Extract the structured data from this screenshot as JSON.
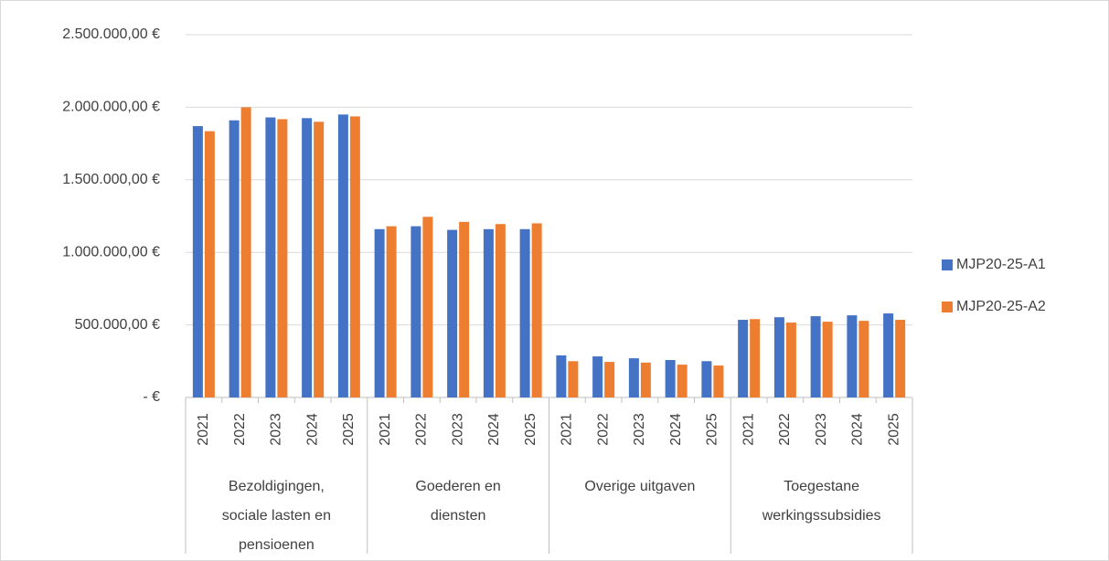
{
  "chart_data": {
    "type": "bar",
    "groups": [
      "Bezoldigingen, sociale lasten en pensioenen",
      "Goederen en diensten",
      "Overige uitgaven",
      "Toegestane werkingssubsidies"
    ],
    "categories": [
      "2021",
      "2022",
      "2023",
      "2024",
      "2025",
      "2021",
      "2022",
      "2023",
      "2024",
      "2025",
      "2021",
      "2022",
      "2023",
      "2024",
      "2025",
      "2021",
      "2022",
      "2023",
      "2024",
      "2025"
    ],
    "series": [
      {
        "name": "MJP20-25-A1",
        "color": "#4472c4",
        "values": [
          1870000,
          1910000,
          1930000,
          1925000,
          1950000,
          1160000,
          1180000,
          1155000,
          1160000,
          1160000,
          290000,
          283000,
          270000,
          258000,
          250000,
          535000,
          553000,
          560000,
          566000,
          579000
        ]
      },
      {
        "name": "MJP20-25-A2",
        "color": "#ed7d31",
        "values": [
          1835000,
          2000000,
          1918000,
          1900000,
          1937000,
          1180000,
          1245000,
          1210000,
          1195000,
          1200000,
          250000,
          245000,
          240000,
          226000,
          220000,
          540000,
          516000,
          522000,
          528000,
          535000
        ]
      }
    ],
    "ylim": [
      0,
      2500000
    ],
    "yticks": [
      {
        "value": 0,
        "label": "-   €"
      },
      {
        "value": 500000,
        "label": "500.000,00 €"
      },
      {
        "value": 1000000,
        "label": "1.000.000,00 €"
      },
      {
        "value": 1500000,
        "label": "1.500.000,00 €"
      },
      {
        "value": 2000000,
        "label": "2.000.000,00 €"
      },
      {
        "value": 2500000,
        "label": "2.500.000,00 €"
      }
    ],
    "grid": true,
    "legend": "right"
  }
}
